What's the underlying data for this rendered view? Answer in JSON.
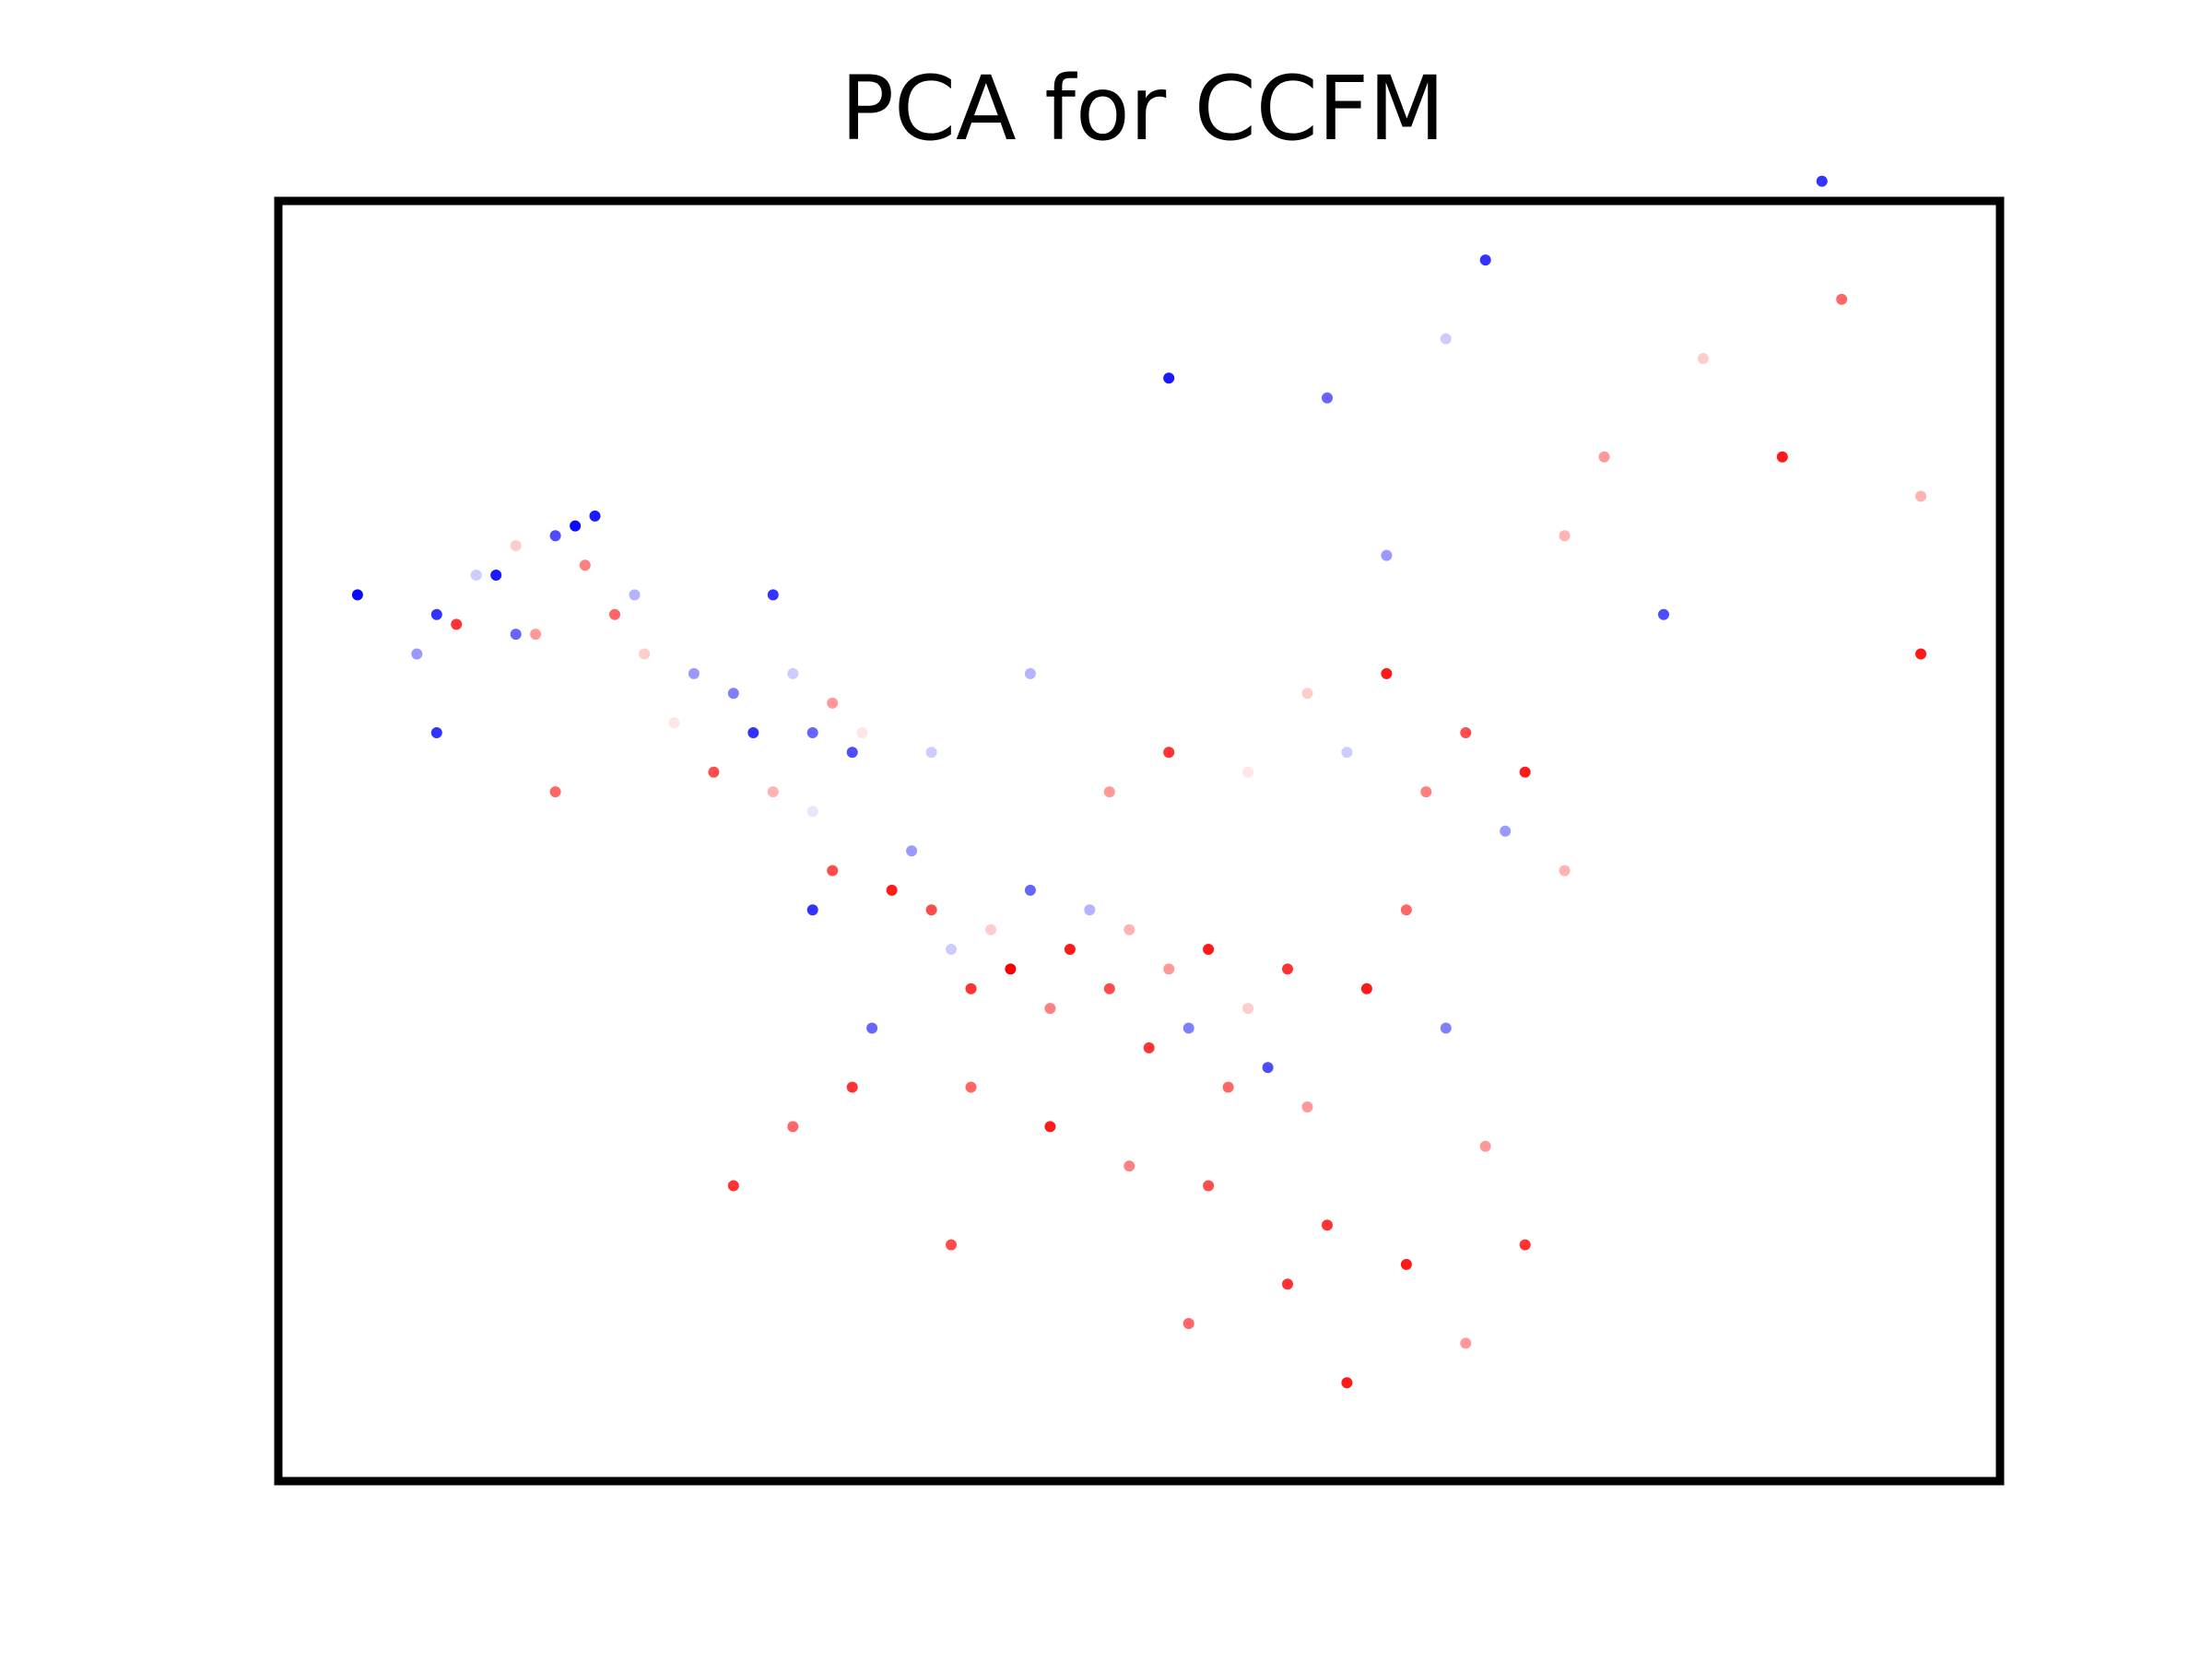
{
  "chart_data": {
    "type": "scatter",
    "title": "PCA for CCFM",
    "xlabel": "",
    "ylabel": "",
    "xlim": [
      -3.7,
      5.0
    ],
    "ylim": [
      -3.2,
      3.3
    ],
    "grid": false,
    "legend": "none",
    "colormap": "bwr",
    "color_range": [
      0,
      1
    ],
    "colors": {
      "low": "#0000ff",
      "mid": "#ffffff",
      "high": "#ff0000",
      "frame": "#000000"
    },
    "points": [
      [
        -3.3,
        1.3,
        0.02
      ],
      [
        -3.0,
        1.0,
        0.3
      ],
      [
        -2.9,
        1.2,
        0.1
      ],
      [
        -2.7,
        1.4,
        0.4
      ],
      [
        -2.6,
        1.4,
        0.05
      ],
      [
        -2.5,
        1.55,
        0.6
      ],
      [
        -2.4,
        1.1,
        0.7
      ],
      [
        -2.3,
        1.6,
        0.15
      ],
      [
        -2.2,
        1.65,
        0.02
      ],
      [
        -2.1,
        1.7,
        0.05
      ],
      [
        -2.0,
        1.2,
        0.8
      ],
      [
        -1.9,
        1.3,
        0.35
      ],
      [
        -2.8,
        1.15,
        0.9
      ],
      [
        -2.5,
        1.1,
        0.2
      ],
      [
        -2.15,
        1.45,
        0.75
      ],
      [
        -1.85,
        1.0,
        0.6
      ],
      [
        -1.6,
        0.9,
        0.3
      ],
      [
        -1.4,
        0.8,
        0.25
      ],
      [
        -1.3,
        0.6,
        0.1
      ],
      [
        -1.1,
        0.9,
        0.4
      ],
      [
        -1.0,
        0.6,
        0.2
      ],
      [
        -0.9,
        0.75,
        0.7
      ],
      [
        -0.8,
        0.5,
        0.15
      ],
      [
        -1.5,
        0.4,
        0.85
      ],
      [
        -1.2,
        0.3,
        0.65
      ],
      [
        -1.0,
        0.2,
        0.45
      ],
      [
        -0.75,
        0.6,
        0.55
      ],
      [
        -1.7,
        0.65,
        0.55
      ],
      [
        -2.9,
        0.6,
        0.1
      ],
      [
        -2.3,
        0.3,
        0.8
      ],
      [
        -0.6,
        -0.2,
        0.95
      ],
      [
        -0.5,
        0.0,
        0.3
      ],
      [
        -0.4,
        -0.3,
        0.85
      ],
      [
        -0.3,
        -0.5,
        0.4
      ],
      [
        -0.2,
        -0.7,
        0.9
      ],
      [
        -0.1,
        -0.4,
        0.6
      ],
      [
        0.0,
        -0.6,
        1.0
      ],
      [
        0.1,
        -0.2,
        0.2
      ],
      [
        0.2,
        -0.8,
        0.75
      ],
      [
        0.3,
        -0.5,
        0.95
      ],
      [
        0.4,
        -0.3,
        0.35
      ],
      [
        0.5,
        -0.7,
        0.85
      ],
      [
        0.6,
        -0.4,
        0.65
      ],
      [
        0.7,
        -1.0,
        0.9
      ],
      [
        0.8,
        -0.6,
        0.7
      ],
      [
        0.9,
        -0.9,
        0.25
      ],
      [
        1.0,
        -0.5,
        0.95
      ],
      [
        1.1,
        -1.2,
        0.8
      ],
      [
        1.2,
        -0.8,
        0.6
      ],
      [
        1.3,
        -1.1,
        0.15
      ],
      [
        1.4,
        -0.6,
        0.9
      ],
      [
        1.5,
        -1.3,
        0.7
      ],
      [
        -0.2,
        -1.2,
        0.8
      ],
      [
        0.2,
        -1.4,
        0.95
      ],
      [
        0.6,
        -1.6,
        0.75
      ],
      [
        1.0,
        -1.7,
        0.85
      ],
      [
        1.6,
        -1.9,
        0.9
      ],
      [
        2.0,
        -2.1,
        0.95
      ],
      [
        2.3,
        -2.5,
        0.7
      ],
      [
        1.4,
        -2.2,
        0.9
      ],
      [
        0.9,
        -2.4,
        0.8
      ],
      [
        -0.3,
        -2.0,
        0.85
      ],
      [
        1.7,
        -2.7,
        0.95
      ],
      [
        -0.8,
        -1.2,
        0.9
      ],
      [
        -1.1,
        -1.4,
        0.8
      ],
      [
        -1.4,
        -1.7,
        0.9
      ],
      [
        -1.0,
        -0.3,
        0.1
      ],
      [
        -0.7,
        -0.9,
        0.2
      ],
      [
        -0.9,
        -0.1,
        0.85
      ],
      [
        0.5,
        0.3,
        0.7
      ],
      [
        0.8,
        0.5,
        0.9
      ],
      [
        1.2,
        0.4,
        0.55
      ],
      [
        1.5,
        0.8,
        0.6
      ],
      [
        1.7,
        0.5,
        0.4
      ],
      [
        1.9,
        0.9,
        0.95
      ],
      [
        2.1,
        0.3,
        0.75
      ],
      [
        2.3,
        0.6,
        0.85
      ],
      [
        2.5,
        0.1,
        0.3
      ],
      [
        2.6,
        0.4,
        0.95
      ],
      [
        2.8,
        -0.1,
        0.65
      ],
      [
        2.0,
        -0.3,
        0.8
      ],
      [
        1.8,
        -0.7,
        0.95
      ],
      [
        2.2,
        -0.9,
        0.25
      ],
      [
        2.4,
        -1.5,
        0.7
      ],
      [
        2.6,
        -2.0,
        0.9
      ],
      [
        1.9,
        1.5,
        0.3
      ],
      [
        1.6,
        2.3,
        0.2
      ],
      [
        2.2,
        2.6,
        0.4
      ],
      [
        2.4,
        3.0,
        0.1
      ],
      [
        3.0,
        2.0,
        0.7
      ],
      [
        3.5,
        2.5,
        0.6
      ],
      [
        4.1,
        3.4,
        0.1
      ],
      [
        4.2,
        2.8,
        0.8
      ],
      [
        3.9,
        2.0,
        0.95
      ],
      [
        4.6,
        1.8,
        0.65
      ],
      [
        4.6,
        1.0,
        0.95
      ],
      [
        0.8,
        2.4,
        0.05
      ],
      [
        3.3,
        1.2,
        0.15
      ],
      [
        2.8,
        1.6,
        0.65
      ],
      [
        -0.4,
        0.5,
        0.4
      ],
      [
        0.1,
        0.9,
        0.35
      ],
      [
        -1.2,
        1.3,
        0.1
      ]
    ]
  }
}
